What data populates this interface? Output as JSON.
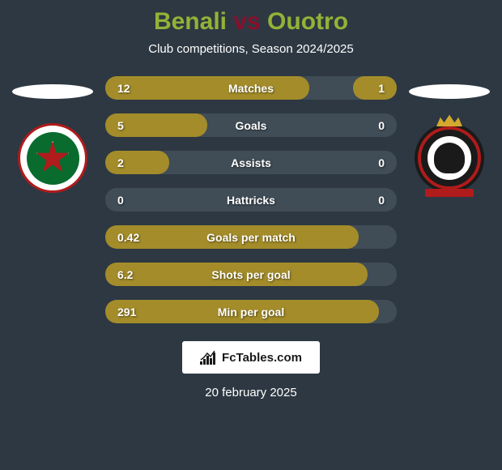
{
  "title": {
    "player1": "Benali",
    "vs": "vs",
    "player2": "Ouotro",
    "player1_color": "#93b237",
    "vs_color": "#8b0e2d",
    "player2_color": "#93b237"
  },
  "subtitle": "Club competitions, Season 2024/2025",
  "colors": {
    "background": "#2d3842",
    "bar_bg": "#404c56",
    "bar_fill": "#a38c29",
    "text": "#ffffff",
    "highlight": "#ffffff"
  },
  "badges": {
    "left": {
      "name": "red-star-fc",
      "highlight_color": "#ffffff"
    },
    "right": {
      "name": "seraing",
      "highlight_color": "#ffffff"
    }
  },
  "stats": [
    {
      "label": "Matches",
      "left_value": "12",
      "right_value": "1",
      "left_width_pct": 70,
      "right_width_pct": 15,
      "fill_color": "#a38c29"
    },
    {
      "label": "Goals",
      "left_value": "5",
      "right_value": "0",
      "left_width_pct": 35,
      "right_width_pct": 0,
      "fill_color": "#a38c29"
    },
    {
      "label": "Assists",
      "left_value": "2",
      "right_value": "0",
      "left_width_pct": 22,
      "right_width_pct": 0,
      "fill_color": "#a38c29"
    },
    {
      "label": "Hattricks",
      "left_value": "0",
      "right_value": "0",
      "left_width_pct": 0,
      "right_width_pct": 0,
      "fill_color": "#a38c29"
    },
    {
      "label": "Goals per match",
      "left_value": "0.42",
      "right_value": "",
      "left_width_pct": 87,
      "right_width_pct": 0,
      "fill_color": "#a38c29"
    },
    {
      "label": "Shots per goal",
      "left_value": "6.2",
      "right_value": "",
      "left_width_pct": 90,
      "right_width_pct": 0,
      "fill_color": "#a38c29"
    },
    {
      "label": "Min per goal",
      "left_value": "291",
      "right_value": "",
      "left_width_pct": 94,
      "right_width_pct": 0,
      "fill_color": "#a38c29"
    }
  ],
  "brand": {
    "text": "FcTables.com"
  },
  "date": "20 february 2025"
}
